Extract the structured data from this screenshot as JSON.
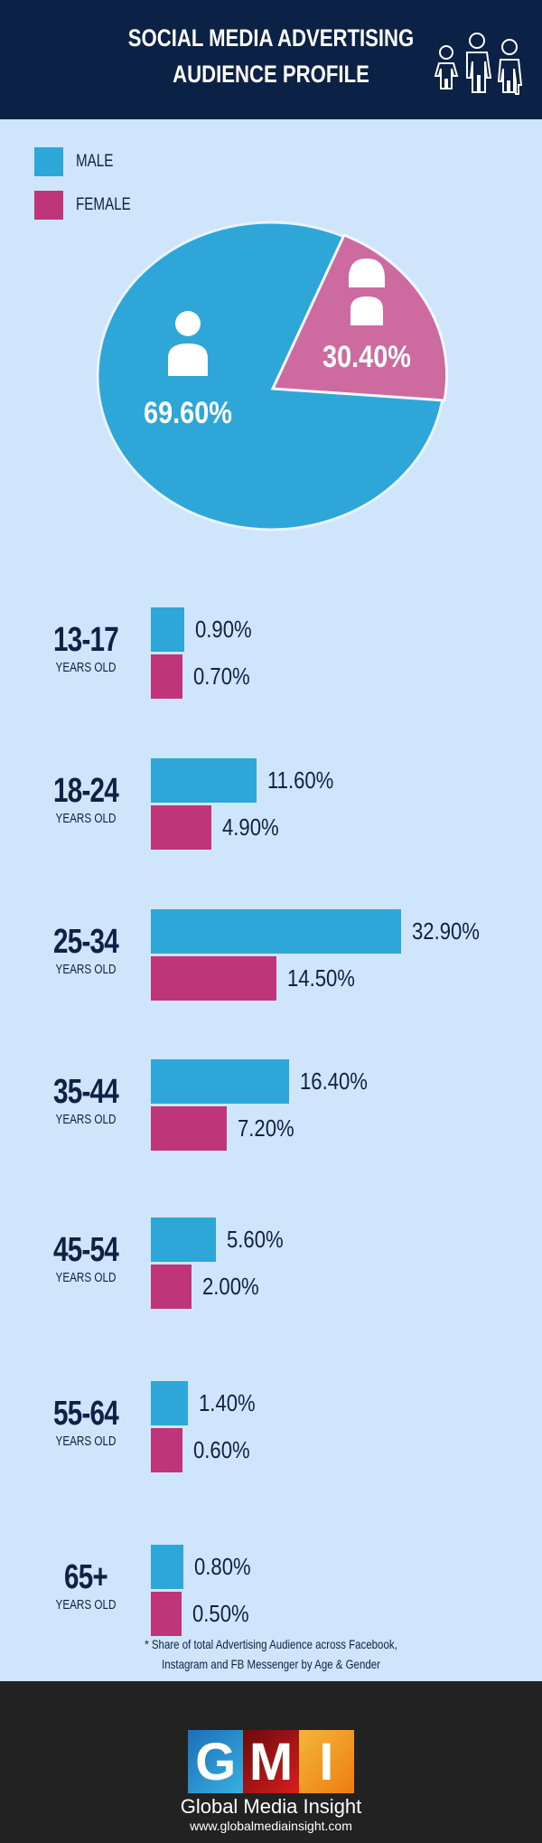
{
  "header": {
    "title_line1": "SOCIAL MEDIA ADVERTISING",
    "title_line2": "AUDIENCE PROFILE",
    "icon": "family-icon"
  },
  "legend": [
    {
      "label": "MALE",
      "color": "#2ea6d8"
    },
    {
      "label": "FEMALE",
      "color": "#bf3579"
    }
  ],
  "chart_data": [
    {
      "type": "pie",
      "categories": [
        "MALE",
        "FEMALE"
      ],
      "values": [
        69.6,
        30.4
      ],
      "labels": [
        "69.60%",
        "30.40%"
      ],
      "colors": [
        "#2ea6d8",
        "#cd6aa0"
      ]
    },
    {
      "type": "bar",
      "orientation": "horizontal",
      "categories": [
        "13-17",
        "18-24",
        "25-34",
        "35-44",
        "45-54",
        "55-64",
        "65+"
      ],
      "category_sublabel": "YEARS OLD",
      "series": [
        {
          "name": "MALE",
          "values": [
            0.9,
            11.6,
            32.9,
            16.4,
            5.6,
            1.4,
            0.8
          ],
          "labels": [
            "0.90%",
            "11.60%",
            "32.90%",
            "16.40%",
            "5.60%",
            "1.40%",
            "0.80%"
          ]
        },
        {
          "name": "FEMALE",
          "values": [
            0.7,
            4.9,
            14.5,
            7.2,
            2.0,
            0.6,
            0.5
          ],
          "labels": [
            "0.70%",
            "4.90%",
            "14.50%",
            "7.20%",
            "2.00%",
            "0.60%",
            "0.50%"
          ]
        }
      ]
    }
  ],
  "note": {
    "line1": "* Share of total Advertising Audience across Facebook,",
    "line2": "Instagram and FB Messenger by Age & Gender"
  },
  "footer": {
    "logo_letters": [
      "G",
      "M",
      "I"
    ],
    "brand": "Global Media Insight",
    "url": "www.globalmediainsight.com"
  }
}
